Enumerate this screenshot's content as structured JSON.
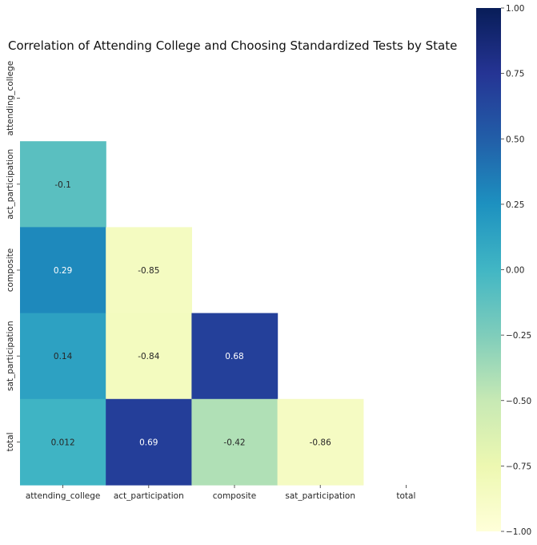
{
  "chart_data": {
    "type": "heatmap",
    "title": "Correlation of Attending College and Choosing Standardized Tests by State",
    "xlabel": "",
    "ylabel": "",
    "x_categories": [
      "attending_college",
      "act_participation",
      "composite",
      "sat_participation",
      "total"
    ],
    "y_categories": [
      "attending_college",
      "act_participation",
      "composite",
      "sat_participation",
      "total"
    ],
    "mask": "upper triangle including diagonal",
    "cells": [
      {
        "row": "act_participation",
        "col": "attending_college",
        "value": -0.1,
        "label": "-0.1"
      },
      {
        "row": "composite",
        "col": "attending_college",
        "value": 0.29,
        "label": "0.29"
      },
      {
        "row": "composite",
        "col": "act_participation",
        "value": -0.85,
        "label": "-0.85"
      },
      {
        "row": "sat_participation",
        "col": "attending_college",
        "value": 0.14,
        "label": "0.14"
      },
      {
        "row": "sat_participation",
        "col": "act_participation",
        "value": -0.84,
        "label": "-0.84"
      },
      {
        "row": "sat_participation",
        "col": "composite",
        "value": 0.68,
        "label": "0.68"
      },
      {
        "row": "total",
        "col": "attending_college",
        "value": 0.012,
        "label": "0.012"
      },
      {
        "row": "total",
        "col": "act_participation",
        "value": 0.69,
        "label": "0.69"
      },
      {
        "row": "total",
        "col": "composite",
        "value": -0.42,
        "label": "-0.42"
      },
      {
        "row": "total",
        "col": "sat_participation",
        "value": -0.86,
        "label": "-0.86"
      }
    ],
    "colorbar": {
      "colormap": "YlGnBu",
      "range": [
        -1.0,
        1.0
      ],
      "ticks": [
        "1.00",
        "0.75",
        "0.50",
        "0.25",
        "0.00",
        "−0.25",
        "−0.50",
        "−0.75",
        "−1.00"
      ],
      "tick_values": [
        1.0,
        0.75,
        0.5,
        0.25,
        0.0,
        -0.25,
        -0.5,
        -0.75,
        -1.0
      ]
    },
    "grid": false,
    "legend": "colorbar-right"
  }
}
